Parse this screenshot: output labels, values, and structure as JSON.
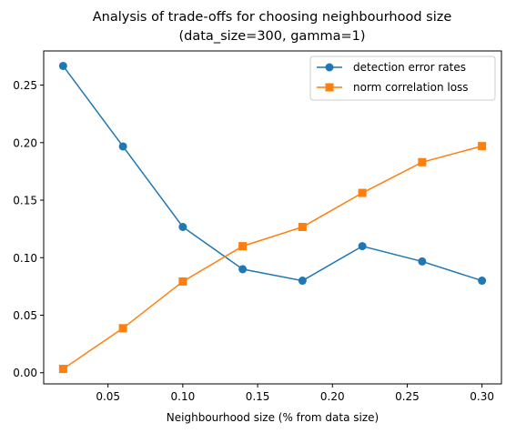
{
  "chart_data": {
    "type": "line",
    "title_line1": "Analysis of trade-offs for choosing neighbourhood size",
    "title_line2": "(data_size=300, gamma=1)",
    "xlabel": "Neighbourhood size (% from data size)",
    "ylabel": "",
    "xlim": [
      0.007,
      0.313
    ],
    "ylim": [
      -0.0097,
      0.2797
    ],
    "xticks": [
      0.05,
      0.1,
      0.15,
      0.2,
      0.25,
      0.3
    ],
    "xtick_labels": [
      "0.05",
      "0.10",
      "0.15",
      "0.20",
      "0.25",
      "0.30"
    ],
    "yticks": [
      0.0,
      0.05,
      0.1,
      0.15,
      0.2,
      0.25
    ],
    "ytick_labels": [
      "0.00",
      "0.05",
      "0.10",
      "0.15",
      "0.20",
      "0.25"
    ],
    "grid": false,
    "legend_position": "top-right",
    "x": [
      0.02,
      0.06,
      0.1,
      0.14,
      0.18,
      0.22,
      0.26,
      0.3
    ],
    "series": [
      {
        "name": "detection error rates",
        "marker": "circle",
        "color": "#1f77b4",
        "values": [
          0.2667,
          0.1967,
          0.1267,
          0.09,
          0.08,
          0.11,
          0.0967,
          0.08
        ]
      },
      {
        "name": "norm correlation loss",
        "marker": "square",
        "color": "#ff7f0e",
        "values": [
          0.0033,
          0.0387,
          0.0793,
          0.11,
          0.1267,
          0.1563,
          0.183,
          0.197
        ]
      }
    ]
  }
}
